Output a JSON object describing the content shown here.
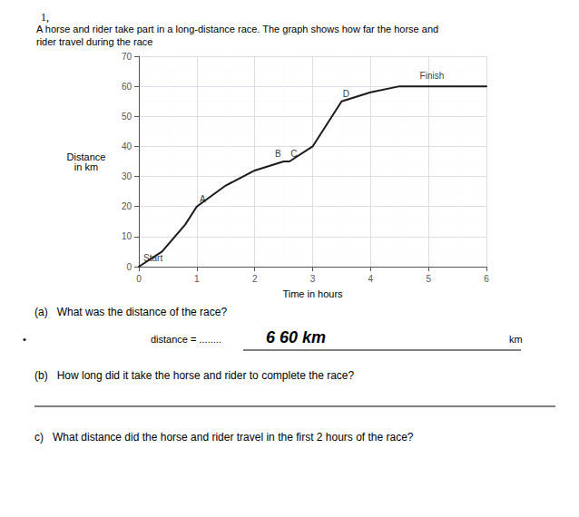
{
  "chart_data": {
    "type": "line",
    "title": "1,",
    "subtitle": [
      "A horse and rider take part in a long-distance race. The graph shows how far the horse and",
      "rider travel during the race"
    ],
    "xlabel": "Time in hours",
    "ylabel": "Distance\nin km",
    "x": [
      0,
      0.4,
      0.8,
      1.0,
      1.5,
      2.0,
      2.5,
      2.6,
      3.0,
      3.5,
      4.0,
      4.5,
      5.0,
      5.5,
      6.0
    ],
    "values": [
      0,
      5,
      14,
      20,
      27,
      32,
      35,
      35,
      40,
      55,
      58,
      60,
      60,
      60,
      60
    ],
    "color": "#1a1a1a",
    "xlim": [
      0,
      6
    ],
    "ylim": [
      0,
      70
    ],
    "xticks": [
      0,
      1,
      2,
      3,
      4,
      5,
      6
    ],
    "yticks": [
      0,
      10,
      20,
      30,
      40,
      50,
      60,
      70
    ],
    "grid": true,
    "annotations": [
      {
        "text": "Start",
        "x": 0.08,
        "y": 1.5
      },
      {
        "text": "A",
        "x": 1.05,
        "y": 21
      },
      {
        "text": "B",
        "x": 2.35,
        "y": 36
      },
      {
        "text": "C",
        "x": 2.62,
        "y": 36
      },
      {
        "text": "D",
        "x": 3.52,
        "y": 56
      },
      {
        "text": "Finish",
        "x": 4.85,
        "y": 62
      }
    ],
    "questions": [
      {
        "text": "(a)   What was the distance of the race?",
        "answer": [
          "•",
          "distance = ........",
          "6 60 km",
          "km"
        ]
      },
      {
        "text": "(b)   How long did it take the horse and rider to complete the race?"
      },
      {
        "text": "c)   What distance did the horse and rider travel in the first 2 hours of the race?"
      }
    ]
  }
}
